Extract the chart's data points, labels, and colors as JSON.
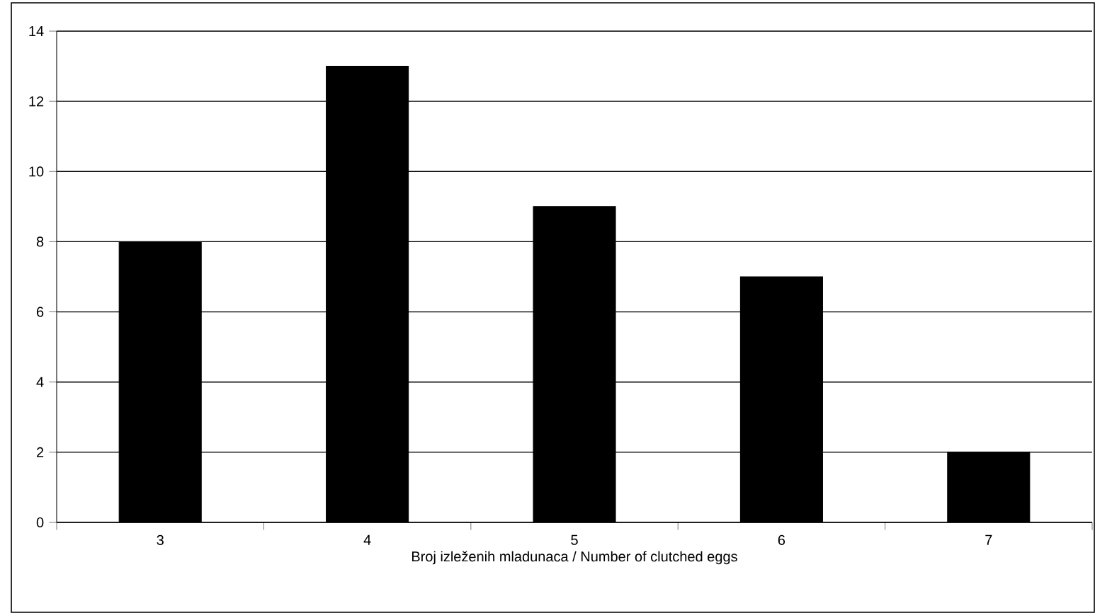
{
  "chart_data": {
    "type": "bar",
    "xlabel": "Broj izleženih mladunaca / Number of clutched eggs",
    "categories": [
      "3",
      "4",
      "5",
      "6",
      "7"
    ],
    "values": [
      8,
      13,
      9,
      7,
      2
    ],
    "color": "#000000",
    "ylim": [
      0,
      14
    ],
    "yticks": [
      0,
      2,
      4,
      6,
      8,
      10,
      12,
      14
    ],
    "grid": "y"
  }
}
